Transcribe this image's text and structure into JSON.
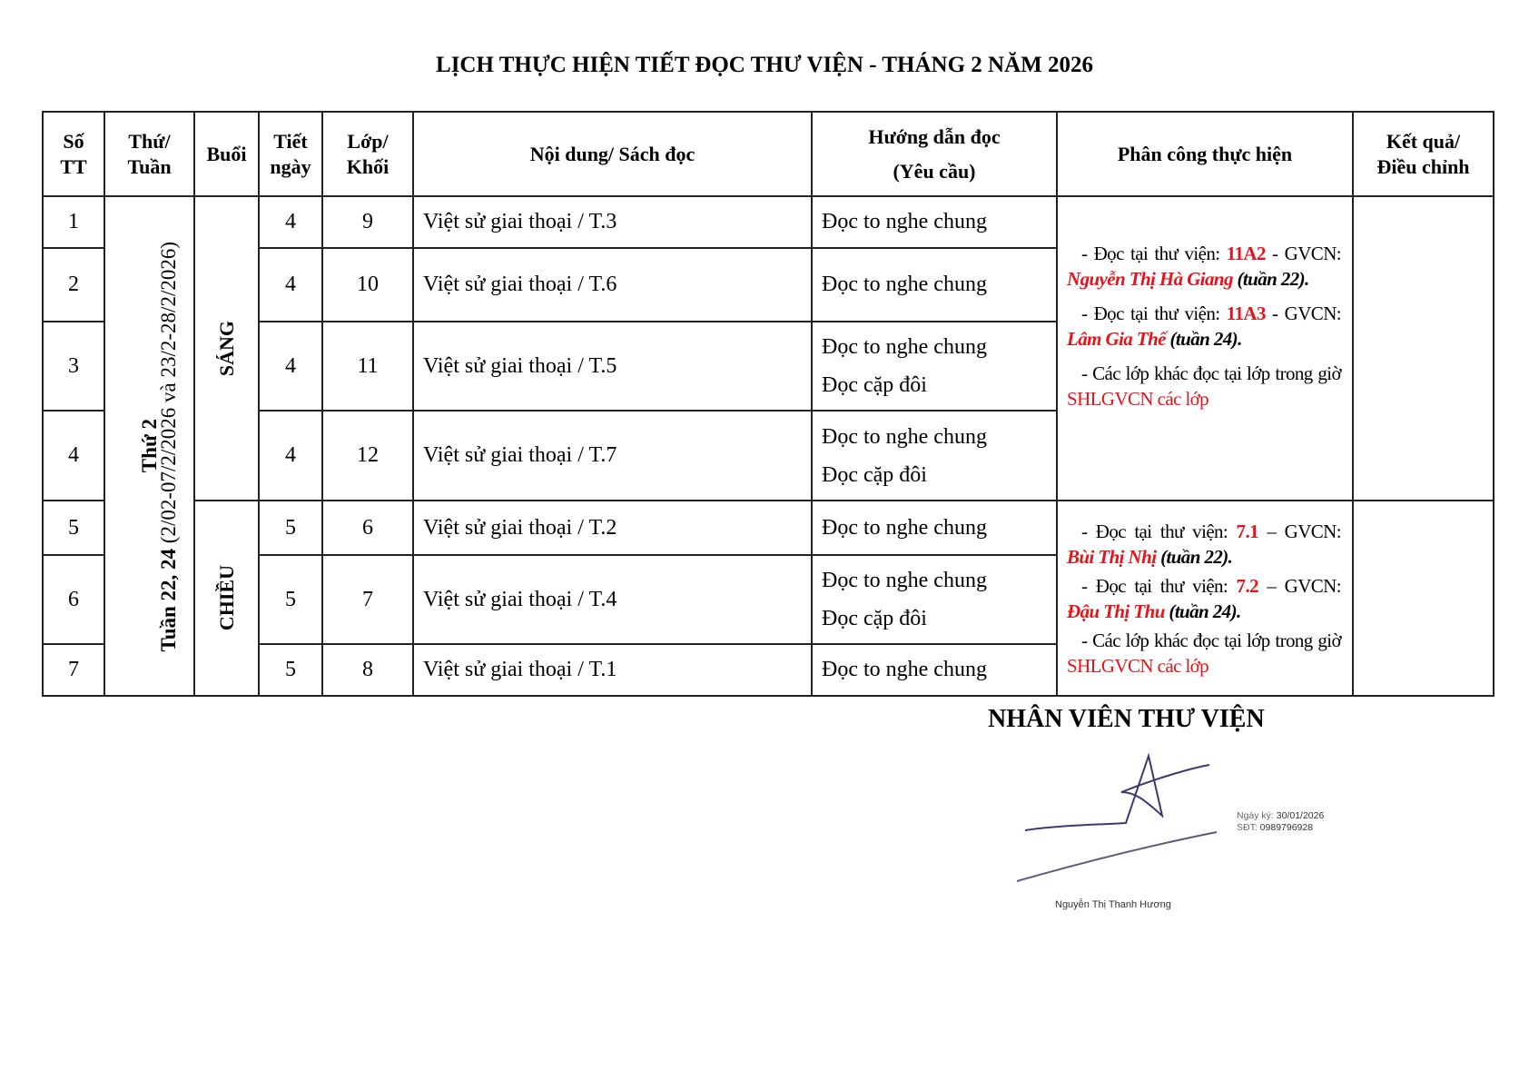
{
  "title": "LỊCH THỰC HIỆN TIẾT ĐỌC THƯ VIỆN  - THÁNG 2 NĂM 2026",
  "headers": {
    "stt": [
      "Số",
      "TT"
    ],
    "thu": [
      "Thứ/",
      "Tuần"
    ],
    "buoi": "Buổi",
    "tiet": [
      "Tiết",
      "ngày"
    ],
    "lop": [
      "Lớp/",
      "Khối"
    ],
    "noidung": "Nội dung/ Sách đọc",
    "huongdan": [
      "Hướng dẫn đọc",
      "(Yêu cầu)"
    ],
    "phancong": "Phân công thực hiện",
    "ketqua": [
      "Kết quả/",
      "Điều chỉnh"
    ]
  },
  "week": {
    "day": "Thứ 2",
    "weeks": "Tuần 22, 24",
    "dates": " (2/02-07/2/2026  và 23/2-28/2/2026)"
  },
  "sessions": {
    "morning": "SÁNG",
    "afternoon": "CHIỀU"
  },
  "rows": [
    {
      "stt": "1",
      "tiet": "4",
      "lop": "9",
      "content": "Việt sử giai thoại / T.3",
      "guide": [
        "Đọc to nghe chung"
      ]
    },
    {
      "stt": "2",
      "tiet": "4",
      "lop": "10",
      "content": "Việt sử giai thoại / T.6",
      "guide": [
        "Đọc to nghe chung"
      ]
    },
    {
      "stt": "3",
      "tiet": "4",
      "lop": "11",
      "content": "Việt sử giai thoại / T.5",
      "guide": [
        "Đọc to nghe chung",
        "Đọc cặp đôi"
      ]
    },
    {
      "stt": "4",
      "tiet": "4",
      "lop": "12",
      "content": "Việt sử giai thoại / T.7",
      "guide": [
        "Đọc to nghe chung",
        "Đọc cặp đôi"
      ]
    },
    {
      "stt": "5",
      "tiet": "5",
      "lop": "6",
      "content": "Việt sử giai thoại / T.2",
      "guide": [
        "Đọc to nghe chung"
      ]
    },
    {
      "stt": "6",
      "tiet": "5",
      "lop": "7",
      "content": "Việt sử giai thoại / T.4",
      "guide": [
        "Đọc to nghe chung",
        "Đọc cặp đôi"
      ]
    },
    {
      "stt": "7",
      "tiet": "5",
      "lop": "8",
      "content": "Việt sử giai thoại / T.1",
      "guide": [
        "Đọc to nghe chung"
      ]
    }
  ],
  "assign_morning": {
    "a1": {
      "pre": "- Đọc tại thư viện: ",
      "cls": "11A2",
      "mid": " - GVCN: ",
      "teacher": "Nguyễn Thị Hà Giang",
      "week": " (tuần 22)."
    },
    "a2": {
      "pre": "- Đọc tại thư viện: ",
      "cls": "11A3",
      "mid": " - GVCN: ",
      "teacher": "Lâm Gia Thế",
      "week": " (tuần 24)."
    },
    "other": "- Các lớp khác đọc tại lớp trong giờ ",
    "other_red": "SHLGVCN các lớp"
  },
  "assign_afternoon": {
    "a1": {
      "pre": "- Đọc tại thư viện: ",
      "cls": "7.1",
      "mid": " – GVCN: ",
      "teacher": "Bùi Thị Nhị",
      "week": " (tuần 22)."
    },
    "a2": {
      "pre": "- Đọc tại thư viện: ",
      "cls": "7.2",
      "mid": " – GVCN: ",
      "teacher": "Đậu Thị Thu",
      "week": " (tuần 24)."
    },
    "other": "- Các lớp khác đọc tại lớp trong giờ ",
    "other_red": "SHLGVCN các lớp"
  },
  "signature": {
    "heading": "NHÂN VIÊN THƯ VIỆN",
    "date_label": "Ngày ký: ",
    "date": "30/01/2026",
    "phone_label": "SĐT: ",
    "phone": "0989796928",
    "name": "Nguyễn Thị Thanh Hương"
  },
  "colors": {
    "highlight": "#e3141b",
    "ink": "#3a3a6e"
  }
}
